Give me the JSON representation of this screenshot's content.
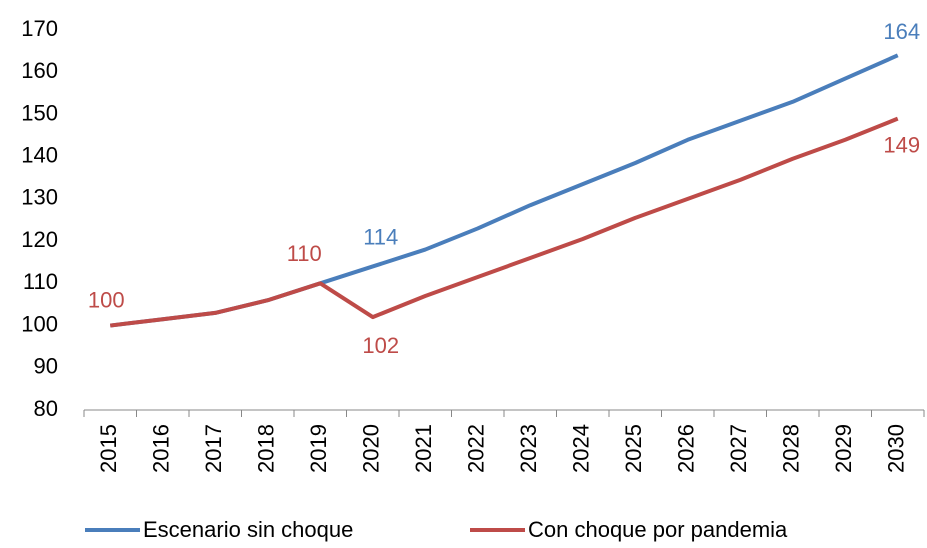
{
  "chart_data": {
    "type": "line",
    "categories": [
      "2015",
      "2016",
      "2017",
      "2018",
      "2019",
      "2020",
      "2021",
      "2022",
      "2023",
      "2024",
      "2025",
      "2026",
      "2027",
      "2028",
      "2029",
      "2030"
    ],
    "series": [
      {
        "name": "Escenario sin choque",
        "color": "#4a7ebb",
        "values": [
          100,
          101.5,
          103,
          106,
          110,
          114,
          118,
          123,
          128.5,
          133.5,
          138.5,
          144,
          148.5,
          153,
          158.5,
          164
        ]
      },
      {
        "name": "Con choque por pandemia",
        "color": "#be4b48",
        "values": [
          100,
          101.5,
          103,
          106,
          110,
          102,
          107,
          111.5,
          116,
          120.5,
          125.5,
          130,
          134.5,
          139.5,
          144,
          149
        ]
      }
    ],
    "ylim": [
      80,
      170
    ],
    "yticks": [
      80,
      90,
      100,
      110,
      120,
      130,
      140,
      150,
      160,
      170
    ],
    "grid": false
  }
}
